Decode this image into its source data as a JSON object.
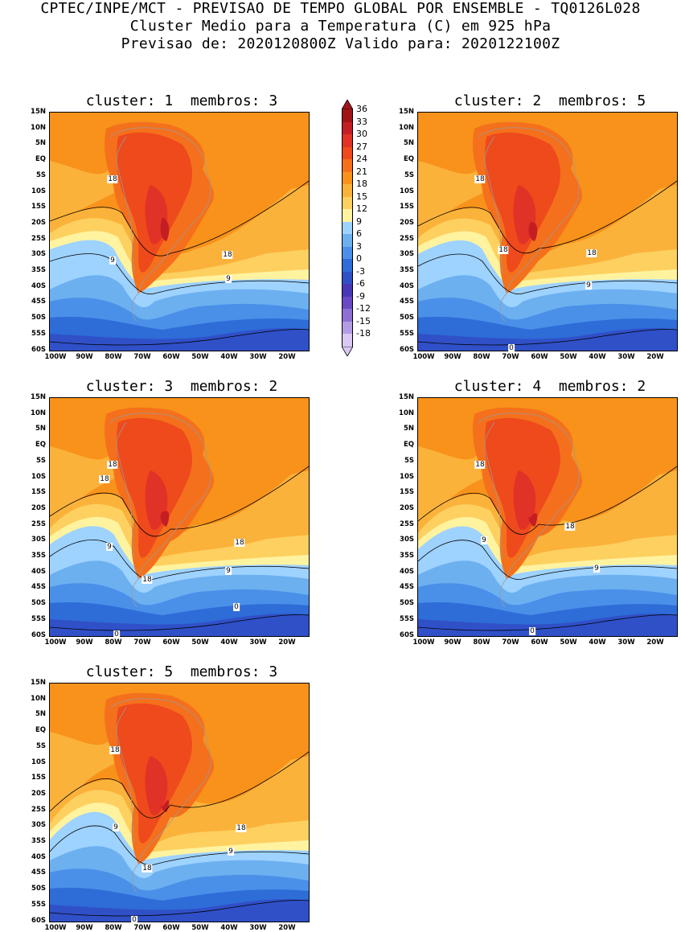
{
  "header": {
    "line1": "CPTEC/INPE/MCT - PREVISAO DE TEMPO GLOBAL POR ENSEMBLE - TQ0126L028",
    "line2": "Cluster Medio para a Temperatura (C) em 925 hPa",
    "line3": "Previsao de: 2020120800Z   Valido para: 2020122100Z"
  },
  "lat_labels": [
    "15N",
    "10N",
    "5N",
    "EQ",
    "5S",
    "10S",
    "15S",
    "20S",
    "25S",
    "30S",
    "35S",
    "40S",
    "45S",
    "50S",
    "55S",
    "60S"
  ],
  "lon_labels": [
    "100W",
    "90W",
    "80W",
    "70W",
    "60W",
    "50W",
    "40W",
    "30W",
    "20W"
  ],
  "colorbar": {
    "labels": [
      "36",
      "33",
      "30",
      "27",
      "24",
      "21",
      "18",
      "15",
      "12",
      "9",
      "6",
      "3",
      "0",
      "-3",
      "-6",
      "-9",
      "-12",
      "-15",
      "-18"
    ],
    "colors": [
      "#a01418",
      "#c41e24",
      "#e03226",
      "#ee4a1c",
      "#f5701c",
      "#f8921a",
      "#fbb23a",
      "#fdd060",
      "#fff3a0",
      "#9ed2ff",
      "#6cb0f0",
      "#4a90e8",
      "#2e6cd8",
      "#3050c8",
      "#4838b8",
      "#6a4ac4",
      "#8e70d4",
      "#b49ce4",
      "#d8c8f2"
    ]
  },
  "panels": [
    {
      "title": "cluster: 1  membros: 3",
      "contour_labels": [
        "18",
        "9",
        "18",
        "9"
      ]
    },
    {
      "title": "cluster: 2  membros: 5",
      "contour_labels": [
        "18",
        "18",
        "18",
        "9",
        "0"
      ]
    },
    {
      "title": "cluster: 3  membros: 2",
      "contour_labels": [
        "18",
        "18",
        "18",
        "9",
        "18",
        "9",
        "0",
        "0"
      ]
    },
    {
      "title": "cluster: 4  membros: 2",
      "contour_labels": [
        "18",
        "9",
        "18",
        "9",
        "0"
      ]
    },
    {
      "title": "cluster: 5  membros: 3",
      "contour_labels": [
        "18",
        "9",
        "18",
        "9",
        "18",
        "0"
      ]
    }
  ]
}
